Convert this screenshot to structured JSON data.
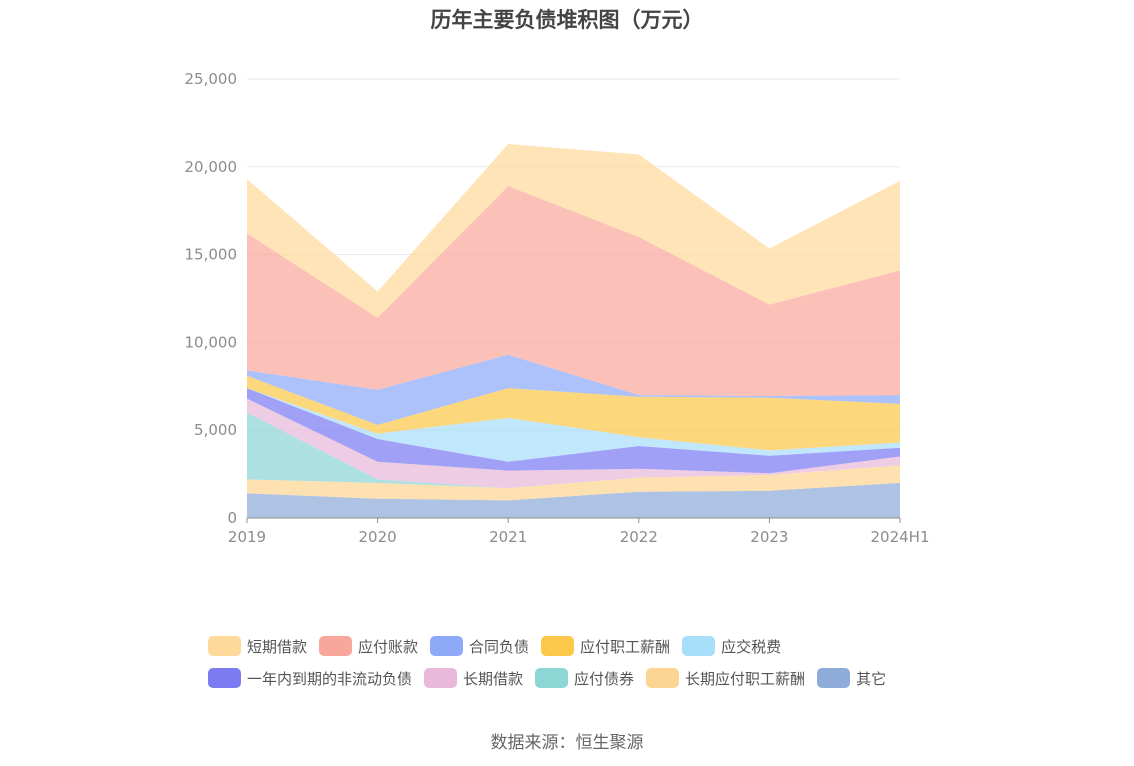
{
  "chart_data": {
    "type": "area",
    "stacked": true,
    "title": "历年主要负债堆积图（万元）",
    "xlabel": "",
    "ylabel": "",
    "categories": [
      "2019",
      "2020",
      "2021",
      "2022",
      "2023",
      "2024H1"
    ],
    "ylim": [
      0,
      25000
    ],
    "yticks": [
      0,
      5000,
      10000,
      15000,
      20000,
      25000
    ],
    "ytick_labels": [
      "0",
      "5,000",
      "10,000",
      "15,000",
      "20,000",
      "25,000"
    ],
    "grid": true,
    "legend_position": "bottom",
    "series": [
      {
        "name": "其它",
        "color": "#8fabd9",
        "values": [
          1400,
          1100,
          1000,
          1500,
          1550,
          2000
        ]
      },
      {
        "name": "长期应付职工薪酬",
        "color": "#fdd593",
        "values": [
          800,
          900,
          700,
          800,
          900,
          1000
        ]
      },
      {
        "name": "应付债券",
        "color": "#8dd6d6",
        "values": [
          3800,
          200,
          0,
          0,
          0,
          0
        ]
      },
      {
        "name": "长期借款",
        "color": "#e8b9da",
        "values": [
          800,
          1000,
          1000,
          500,
          100,
          500
        ]
      },
      {
        "name": "一年内到期的非流动负债",
        "color": "#7c7cf2",
        "values": [
          600,
          1300,
          500,
          1300,
          1000,
          500
        ]
      },
      {
        "name": "应交税费",
        "color": "#a7defa",
        "values": [
          0,
          300,
          2500,
          500,
          300,
          300
        ]
      },
      {
        "name": "应付职工薪酬",
        "color": "#fcc84a",
        "values": [
          700,
          500,
          1700,
          2300,
          3000,
          2200
        ]
      },
      {
        "name": "合同负债",
        "color": "#8ea9f8",
        "values": [
          300,
          2000,
          1900,
          100,
          100,
          500
        ]
      },
      {
        "name": "应付账款",
        "color": "#f9a79d",
        "values": [
          7800,
          4100,
          9600,
          9000,
          5200,
          7100
        ]
      },
      {
        "name": "短期借款",
        "color": "#fdd99a",
        "values": [
          3100,
          1500,
          2400,
          4700,
          3200,
          5100
        ]
      }
    ],
    "legend_order": [
      "短期借款",
      "应付账款",
      "合同负债",
      "应付职工薪酬",
      "应交税费",
      "一年内到期的非流动负债",
      "长期借款",
      "应付债券",
      "长期应付职工薪酬",
      "其它"
    ]
  },
  "source": "数据来源：恒生聚源"
}
